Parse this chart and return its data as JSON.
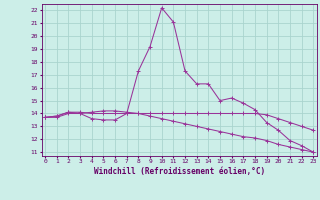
{
  "xlabel": "Windchill (Refroidissement éolien,°C)",
  "bg_color": "#cceee8",
  "grid_color": "#aad4ce",
  "line_color": "#993399",
  "x_ticks": [
    0,
    1,
    2,
    3,
    4,
    5,
    6,
    7,
    8,
    9,
    10,
    11,
    12,
    13,
    14,
    15,
    16,
    17,
    18,
    19,
    20,
    21,
    22,
    23
  ],
  "y_ticks": [
    11,
    12,
    13,
    14,
    15,
    16,
    17,
    18,
    19,
    20,
    21,
    22
  ],
  "xlim": [
    -0.3,
    23.3
  ],
  "ylim": [
    10.7,
    22.5
  ],
  "series": [
    {
      "x": [
        0,
        1,
        2,
        3,
        4,
        5,
        6,
        7,
        8,
        9,
        10,
        11,
        12,
        13,
        14,
        15,
        16,
        17,
        18,
        19,
        20,
        21,
        22,
        23
      ],
      "y": [
        13.7,
        13.8,
        14.1,
        14.1,
        14.0,
        14.0,
        14.0,
        14.0,
        17.3,
        19.2,
        22.2,
        21.1,
        17.3,
        16.3,
        16.3,
        15.0,
        15.2,
        14.8,
        14.3,
        13.3,
        12.7,
        11.9,
        11.5,
        11.0
      ]
    },
    {
      "x": [
        0,
        1,
        2,
        3,
        4,
        5,
        6,
        7,
        8,
        9,
        10,
        11,
        12,
        13,
        14,
        15,
        16,
        17,
        18,
        19,
        20,
        21,
        22,
        23
      ],
      "y": [
        13.7,
        13.8,
        14.1,
        14.0,
        13.6,
        13.5,
        13.5,
        14.0,
        14.0,
        14.0,
        14.0,
        14.0,
        14.0,
        14.0,
        14.0,
        14.0,
        14.0,
        14.0,
        14.0,
        13.9,
        13.6,
        13.3,
        13.0,
        12.7
      ]
    },
    {
      "x": [
        0,
        1,
        2,
        3,
        4,
        5,
        6,
        7,
        8,
        9,
        10,
        11,
        12,
        13,
        14,
        15,
        16,
        17,
        18,
        19,
        20,
        21,
        22,
        23
      ],
      "y": [
        13.7,
        13.7,
        14.0,
        14.0,
        14.1,
        14.2,
        14.2,
        14.1,
        14.0,
        13.8,
        13.6,
        13.4,
        13.2,
        13.0,
        12.8,
        12.6,
        12.4,
        12.2,
        12.1,
        11.9,
        11.6,
        11.4,
        11.2,
        11.0
      ]
    }
  ],
  "marker": "+",
  "markersize": 3,
  "linewidth": 0.75,
  "tick_fontsize": 4.5,
  "label_fontsize": 5.5,
  "font_color": "#660066"
}
